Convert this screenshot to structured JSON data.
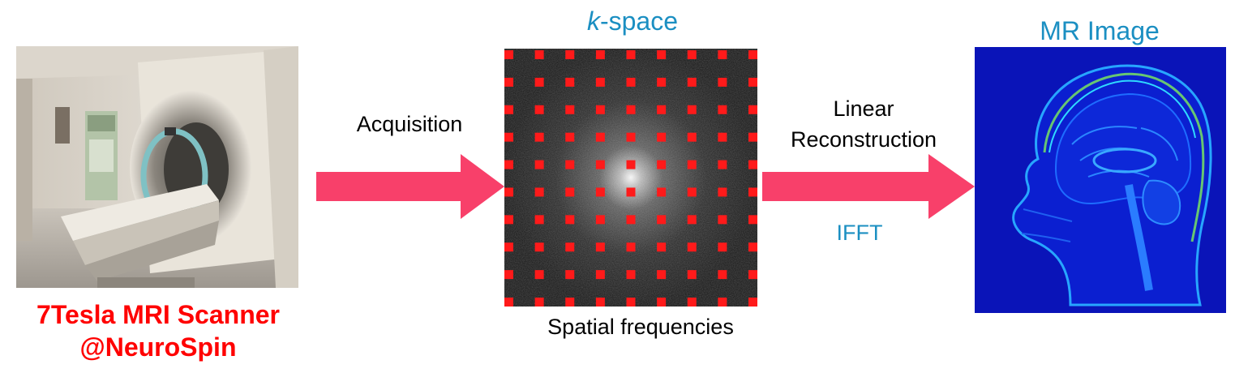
{
  "scanner": {
    "caption_line1": "7Tesla MRI Scanner",
    "caption_line2": "@NeuroSpin"
  },
  "acquisition": {
    "label": "Acquisition"
  },
  "kspace": {
    "title_prefix": "k",
    "title_suffix": "-space",
    "caption": "Spatial frequencies"
  },
  "reconstruction": {
    "label_line1": "Linear",
    "label_line2": "Reconstruction",
    "method": "IFFT"
  },
  "mr_image": {
    "title": "MR Image"
  },
  "colors": {
    "arrow": "#f8406a",
    "caption_red": "#ff0000",
    "accent_blue": "#1b8fc2",
    "sample_red": "#ff1a1a"
  }
}
